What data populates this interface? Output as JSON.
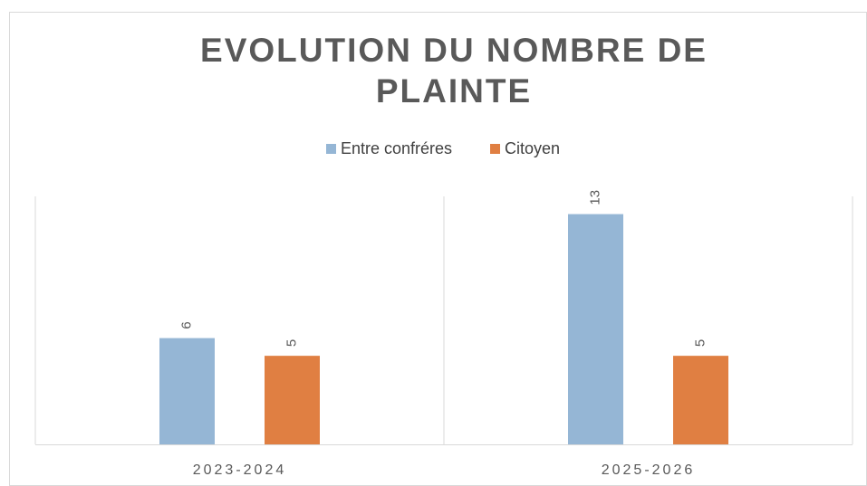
{
  "chart_data": {
    "type": "bar",
    "title": [
      "EVOLUTION DU NOMBRE DE",
      "PLAINTE"
    ],
    "categories": [
      "2023-2024",
      "2025-2026"
    ],
    "series": [
      {
        "name": "Entre confréres",
        "color": "#95b6d5",
        "values": [
          6,
          13
        ]
      },
      {
        "name": "Citoyen",
        "color": "#e07f42",
        "values": [
          5,
          5
        ]
      }
    ],
    "ylim": [
      0,
      14
    ],
    "legend": "top"
  }
}
